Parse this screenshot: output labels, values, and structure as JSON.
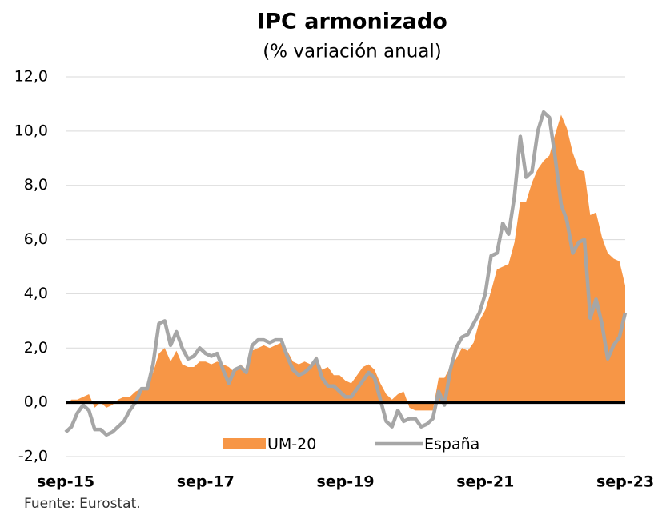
{
  "chart_data": {
    "type": "area_line",
    "title": "IPC armonizado",
    "subtitle": "(% variación anual)",
    "source": "Fuente: Eurostat.",
    "categories": [
      "sep-15",
      null,
      null,
      null,
      null,
      null,
      null,
      null,
      null,
      null,
      null,
      null,
      null,
      null,
      null,
      null,
      null,
      null,
      null,
      null,
      null,
      null,
      null,
      null,
      "sep-17",
      null,
      null,
      null,
      null,
      null,
      null,
      null,
      null,
      null,
      null,
      null,
      null,
      null,
      null,
      null,
      null,
      null,
      null,
      null,
      null,
      null,
      null,
      null,
      "sep-19",
      null,
      null,
      null,
      null,
      null,
      null,
      null,
      null,
      null,
      null,
      null,
      null,
      null,
      null,
      null,
      null,
      null,
      null,
      null,
      null,
      null,
      null,
      null,
      "sep-21",
      null,
      null,
      null,
      null,
      null,
      null,
      null,
      null,
      null,
      null,
      null,
      null,
      null,
      null,
      null,
      null,
      null,
      null,
      null,
      null,
      null,
      null,
      null,
      "sep-23"
    ],
    "series": [
      {
        "name": "UM-20",
        "color": "#f79646",
        "style": "area",
        "values": [
          -0.1,
          0.1,
          0.1,
          0.2,
          0.3,
          -0.2,
          0.0,
          -0.2,
          -0.1,
          0.1,
          0.2,
          0.2,
          0.4,
          0.5,
          0.6,
          1.1,
          1.8,
          2.0,
          1.5,
          1.9,
          1.4,
          1.3,
          1.3,
          1.5,
          1.5,
          1.4,
          1.5,
          1.4,
          1.3,
          1.1,
          1.4,
          1.2,
          1.9,
          2.0,
          2.1,
          2.0,
          2.1,
          2.2,
          1.9,
          1.5,
          1.4,
          1.5,
          1.4,
          1.7,
          1.2,
          1.3,
          1.0,
          1.0,
          0.8,
          0.7,
          1.0,
          1.3,
          1.4,
          1.2,
          0.7,
          0.3,
          0.1,
          0.3,
          0.4,
          -0.2,
          -0.3,
          -0.3,
          -0.3,
          -0.3,
          0.9,
          0.9,
          1.3,
          1.6,
          2.0,
          1.9,
          2.2,
          3.0,
          3.4,
          4.1,
          4.9,
          5.0,
          5.1,
          5.9,
          7.4,
          7.4,
          8.1,
          8.6,
          8.9,
          9.1,
          9.9,
          10.6,
          10.1,
          9.2,
          8.6,
          8.5,
          6.9,
          7.0,
          6.1,
          5.5,
          5.3,
          5.2,
          4.3
        ]
      },
      {
        "name": "España",
        "color": "#a6a6a6",
        "style": "line",
        "values": [
          -1.1,
          -0.9,
          -0.4,
          -0.1,
          -0.3,
          -1.0,
          -1.0,
          -1.2,
          -1.1,
          -0.9,
          -0.7,
          -0.3,
          0.0,
          0.5,
          0.5,
          1.4,
          2.9,
          3.0,
          2.1,
          2.6,
          2.0,
          1.6,
          1.7,
          2.0,
          1.8,
          1.7,
          1.8,
          1.2,
          0.7,
          1.2,
          1.3,
          1.1,
          2.1,
          2.3,
          2.3,
          2.2,
          2.3,
          2.3,
          1.7,
          1.2,
          1.0,
          1.1,
          1.3,
          1.6,
          0.9,
          0.6,
          0.6,
          0.4,
          0.2,
          0.2,
          0.5,
          0.8,
          1.1,
          0.9,
          0.1,
          -0.7,
          -0.9,
          -0.3,
          -0.7,
          -0.6,
          -0.6,
          -0.9,
          -0.8,
          -0.6,
          0.4,
          -0.1,
          1.2,
          2.0,
          2.4,
          2.5,
          2.9,
          3.3,
          4.0,
          5.4,
          5.5,
          6.6,
          6.2,
          7.6,
          9.8,
          8.3,
          8.5,
          10.0,
          10.7,
          10.5,
          9.0,
          7.3,
          6.7,
          5.5,
          5.9,
          6.0,
          3.1,
          3.8,
          2.9,
          1.6,
          2.1,
          2.4,
          3.3
        ]
      }
    ],
    "ylim": [
      -2,
      12
    ],
    "yticks": [
      {
        "value": -2,
        "label": "-2,0"
      },
      {
        "value": 0,
        "label": "0,0"
      },
      {
        "value": 2,
        "label": "2,0"
      },
      {
        "value": 4,
        "label": "4,0"
      },
      {
        "value": 6,
        "label": "6,0"
      },
      {
        "value": 8,
        "label": "8,0"
      },
      {
        "value": 10,
        "label": "10,0"
      },
      {
        "value": 12,
        "label": "12,0"
      }
    ],
    "grid": true,
    "legend": "bottom"
  }
}
